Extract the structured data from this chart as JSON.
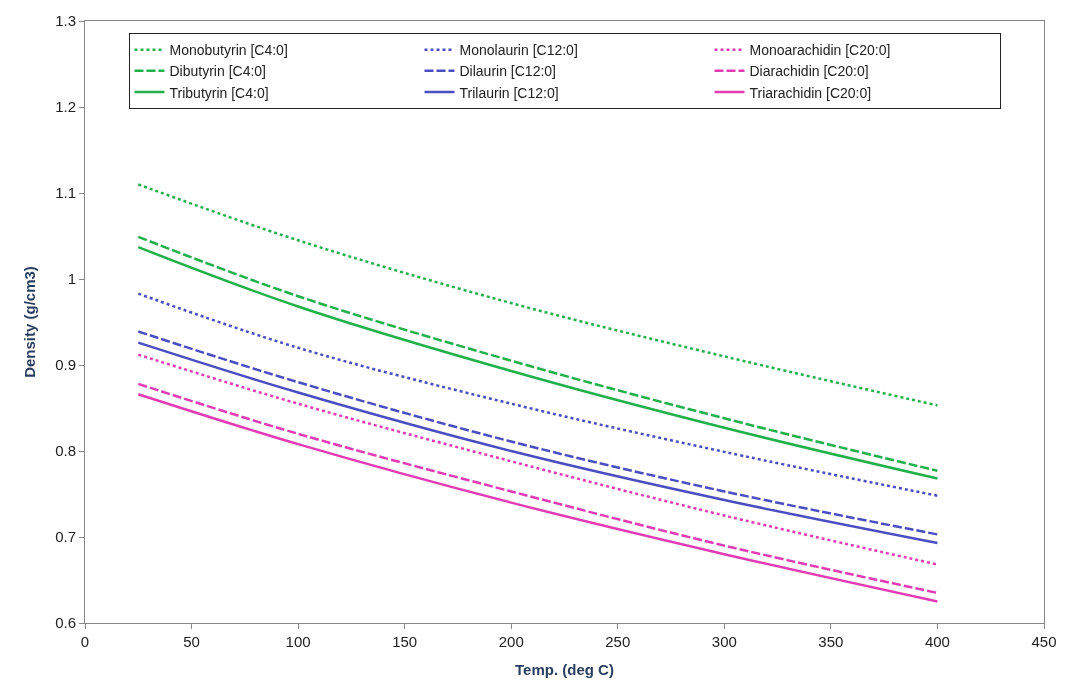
{
  "chart_data": {
    "type": "line",
    "xlabel": "Temp. (deg C)",
    "ylabel": "Density (g/cm3)",
    "x": [
      25,
      100,
      200,
      300,
      400
    ],
    "xlim": [
      0,
      450
    ],
    "xticks": [
      0,
      50,
      100,
      150,
      200,
      250,
      300,
      350,
      400,
      450
    ],
    "ylim": [
      0.6,
      1.3
    ],
    "yticks": [
      0.6,
      0.7,
      0.8,
      0.9,
      1,
      1.1,
      1.2,
      1.3
    ],
    "legend": "top",
    "marker": "none",
    "series": [
      {
        "name": "Monobutyrin [C4:0]",
        "color": "#22b04a",
        "line_style": "dotted",
        "values": [
          1.11,
          1.045,
          0.972,
          0.91,
          0.853
        ]
      },
      {
        "name": "Monolaurin [C12:0]",
        "color": "#4a4ec0",
        "line_style": "dotted",
        "values": [
          0.983,
          0.92,
          0.855,
          0.799,
          0.748
        ]
      },
      {
        "name": "Monoarachidin [C20:0]",
        "color": "#e23cb4",
        "line_style": "dotted",
        "values": [
          0.912,
          0.855,
          0.788,
          0.725,
          0.668
        ]
      },
      {
        "name": "Dibutyrin [C4:0]",
        "color": "#22b04a",
        "line_style": "dashed",
        "values": [
          1.049,
          0.98,
          0.905,
          0.838,
          0.777
        ]
      },
      {
        "name": "Dilaurin [C12:0]",
        "color": "#4a4ec0",
        "line_style": "dashed",
        "values": [
          0.939,
          0.88,
          0.811,
          0.753,
          0.703
        ]
      },
      {
        "name": "Diarachidin [C20:0]",
        "color": "#e23cb4",
        "line_style": "dashed",
        "values": [
          0.878,
          0.82,
          0.753,
          0.69,
          0.635
        ]
      },
      {
        "name": "Tributyrin [C4:0]",
        "color": "#22b04a",
        "line_style": "solid",
        "values": [
          1.037,
          0.968,
          0.893,
          0.827,
          0.768
        ]
      },
      {
        "name": "Trilaurin [C12:0]",
        "color": "#4a4ec0",
        "line_style": "solid",
        "values": [
          0.926,
          0.868,
          0.8,
          0.743,
          0.693
        ]
      },
      {
        "name": "Triarachidin [C20:0]",
        "color": "#e23cb4",
        "line_style": "solid",
        "values": [
          0.866,
          0.808,
          0.74,
          0.68,
          0.625
        ]
      }
    ]
  }
}
